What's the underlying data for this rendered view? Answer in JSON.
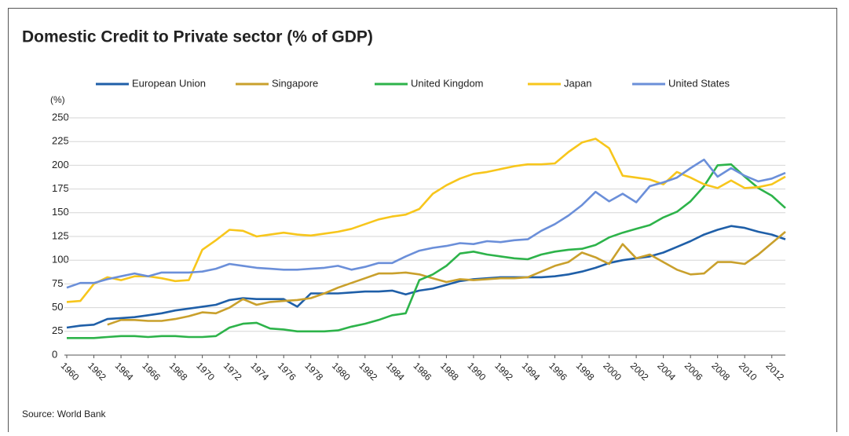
{
  "chart_data": {
    "type": "line",
    "title": "Domestic Credit to Private sector (% of GDP)",
    "y_label": "(%)",
    "source": "Source: World Bank",
    "x": [
      1960,
      1961,
      1962,
      1963,
      1964,
      1965,
      1966,
      1967,
      1968,
      1969,
      1970,
      1971,
      1972,
      1973,
      1974,
      1975,
      1976,
      1977,
      1978,
      1979,
      1980,
      1981,
      1982,
      1983,
      1984,
      1985,
      1986,
      1987,
      1988,
      1989,
      1990,
      1991,
      1992,
      1993,
      1994,
      1995,
      1996,
      1997,
      1998,
      1999,
      2000,
      2001,
      2002,
      2003,
      2004,
      2005,
      2006,
      2007,
      2008,
      2009,
      2010,
      2011,
      2012,
      2013
    ],
    "series": [
      {
        "name": "European Union",
        "color": "#1f5fa8",
        "values": [
          29,
          31,
          32,
          38,
          39,
          40,
          42,
          44,
          47,
          49,
          51,
          53,
          58,
          60,
          59,
          59,
          59,
          51,
          65,
          65,
          65,
          66,
          67,
          67,
          68,
          64,
          68,
          70,
          74,
          78,
          80,
          81,
          82,
          82,
          82,
          82,
          83,
          85,
          88,
          92,
          97,
          100,
          102,
          104,
          108,
          114,
          120,
          127,
          132,
          136,
          134,
          130,
          127,
          122
        ]
      },
      {
        "name": "Singapore",
        "color": "#c9a02c",
        "values": [
          null,
          null,
          null,
          32,
          37,
          37,
          36,
          36,
          38,
          41,
          45,
          44,
          50,
          59,
          53,
          56,
          57,
          58,
          60,
          65,
          71,
          76,
          81,
          86,
          86,
          87,
          85,
          81,
          77,
          80,
          79,
          80,
          81,
          81,
          82,
          88,
          94,
          98,
          108,
          103,
          96,
          117,
          102,
          106,
          98,
          90,
          85,
          86,
          98,
          98,
          96,
          106,
          118,
          130
        ]
      },
      {
        "name": "United Kingdom",
        "color": "#2db34a",
        "values": [
          18,
          18,
          18,
          19,
          20,
          20,
          19,
          20,
          20,
          19,
          19,
          20,
          29,
          33,
          34,
          28,
          27,
          25,
          25,
          25,
          26,
          30,
          33,
          37,
          42,
          44,
          79,
          85,
          94,
          107,
          109,
          106,
          104,
          102,
          101,
          106,
          109,
          111,
          112,
          116,
          124,
          129,
          133,
          137,
          145,
          151,
          162,
          178,
          200,
          201,
          188,
          176,
          168,
          155
        ]
      },
      {
        "name": "Japan",
        "color": "#f7c61c",
        "values": [
          56,
          57,
          75,
          82,
          79,
          83,
          83,
          81,
          78,
          79,
          111,
          121,
          132,
          131,
          125,
          127,
          129,
          127,
          126,
          128,
          130,
          133,
          138,
          143,
          146,
          148,
          154,
          170,
          179,
          186,
          191,
          193,
          196,
          199,
          201,
          201,
          202,
          214,
          224,
          228,
          218,
          189,
          187,
          185,
          180,
          193,
          187,
          180,
          176,
          184,
          176,
          177,
          180,
          188
        ]
      },
      {
        "name": "United States",
        "color": "#6b8fd9",
        "values": [
          71,
          76,
          76,
          80,
          83,
          86,
          83,
          87,
          87,
          87,
          88,
          91,
          96,
          94,
          92,
          91,
          90,
          90,
          91,
          92,
          94,
          90,
          93,
          97,
          97,
          104,
          110,
          113,
          115,
          118,
          117,
          120,
          119,
          121,
          122,
          131,
          138,
          147,
          158,
          172,
          162,
          170,
          161,
          178,
          182,
          187,
          197,
          206,
          188,
          197,
          189,
          183,
          186,
          192
        ]
      }
    ],
    "xlim": [
      1960,
      2013
    ],
    "xticks": [
      1960,
      1962,
      1964,
      1966,
      1968,
      1970,
      1972,
      1974,
      1976,
      1978,
      1980,
      1982,
      1984,
      1986,
      1988,
      1990,
      1992,
      1994,
      1996,
      1998,
      2000,
      2002,
      2004,
      2006,
      2008,
      2010,
      2012
    ],
    "ylim": [
      0,
      250
    ],
    "yticks": [
      0,
      25,
      50,
      75,
      100,
      125,
      150,
      175,
      200,
      225,
      250
    ],
    "grid": true,
    "legend": "top"
  }
}
